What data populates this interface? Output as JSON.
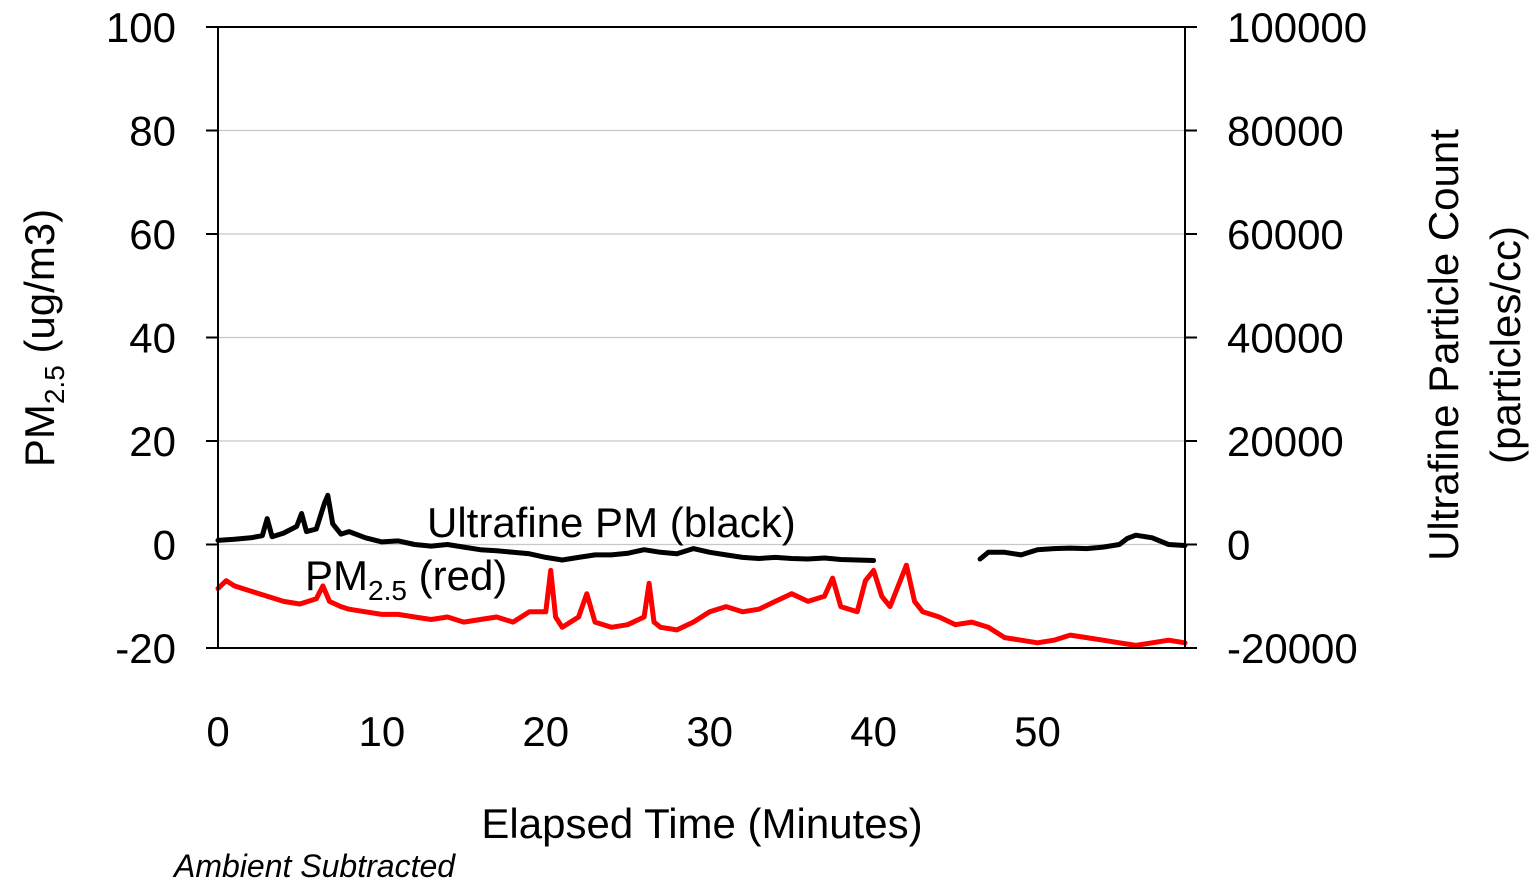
{
  "chart_data": {
    "type": "line",
    "xlabel": "Elapsed Time (Minutes)",
    "ylabel_left": {
      "main": "PM",
      "sub": "2.5",
      "rest": " (ug/m3)"
    },
    "ylabel_right_lines": [
      "Ultrafine Particle Count",
      "(particles/cc)"
    ],
    "note": "Ambient Subtracted",
    "xlim": [
      0,
      59
    ],
    "ylim_left": [
      -20,
      100
    ],
    "ylim_right": [
      -20000,
      100000
    ],
    "x_ticks": [
      "0",
      "10",
      "20",
      "30",
      "40",
      "50"
    ],
    "y_left_ticks": [
      "100",
      "80",
      "60",
      "40",
      "20",
      "0",
      "-20"
    ],
    "y_right_ticks": [
      "100000",
      "80000",
      "60000",
      "40000",
      "20000",
      "0",
      "-20000"
    ],
    "grid": "horizontal",
    "annotations": {
      "ultrafine": "Ultrafine PM (black)",
      "pm": {
        "main": "PM",
        "sub": "2.5",
        "rest": " (red)"
      }
    },
    "series": [
      {
        "axis": "right",
        "color": "#000000",
        "points": [
          [
            0,
            800
          ],
          [
            1,
            1000
          ],
          [
            2,
            1300
          ],
          [
            2.7,
            1700
          ],
          [
            3.0,
            5000
          ],
          [
            3.3,
            1500
          ],
          [
            4.0,
            2200
          ],
          [
            4.8,
            3500
          ],
          [
            5.1,
            6000
          ],
          [
            5.4,
            2500
          ],
          [
            6.0,
            3000
          ],
          [
            6.5,
            8000
          ],
          [
            6.7,
            9500
          ],
          [
            7.0,
            4000
          ],
          [
            7.5,
            2000
          ],
          [
            8.0,
            2500
          ],
          [
            9.0,
            1300
          ],
          [
            10.0,
            500
          ],
          [
            11.0,
            700
          ],
          [
            12.0,
            0
          ],
          [
            13.0,
            -300
          ],
          [
            14.0,
            0
          ],
          [
            15.0,
            -500
          ],
          [
            16.0,
            -1000
          ],
          [
            17.0,
            -1200
          ],
          [
            18.0,
            -1500
          ],
          [
            19.0,
            -1800
          ],
          [
            20.0,
            -2500
          ],
          [
            21.0,
            -3000
          ],
          [
            22.0,
            -2500
          ],
          [
            23.0,
            -2000
          ],
          [
            24.0,
            -2000
          ],
          [
            25.0,
            -1700
          ],
          [
            26.0,
            -1000
          ],
          [
            27.0,
            -1500
          ],
          [
            28.0,
            -1800
          ],
          [
            29.0,
            -800
          ],
          [
            30.0,
            -1500
          ],
          [
            31.0,
            -2000
          ],
          [
            32.0,
            -2500
          ],
          [
            33.0,
            -2700
          ],
          [
            34.0,
            -2500
          ],
          [
            35.0,
            -2700
          ],
          [
            36.0,
            -2800
          ],
          [
            37.0,
            -2600
          ],
          [
            38.0,
            -2900
          ],
          [
            39.0,
            -3000
          ],
          [
            40.0,
            -3100
          ],
          null,
          [
            46.5,
            -2800
          ],
          [
            47.0,
            -1500
          ],
          [
            48.0,
            -1500
          ],
          [
            49.0,
            -2000
          ],
          [
            50.0,
            -1000
          ],
          [
            51.0,
            -800
          ],
          [
            52.0,
            -700
          ],
          [
            53.0,
            -800
          ],
          [
            54.0,
            -500
          ],
          [
            55.0,
            0
          ],
          [
            55.5,
            1200
          ],
          [
            56.0,
            1800
          ],
          [
            57.0,
            1300
          ],
          [
            58.0,
            0
          ],
          [
            59.0,
            -200
          ]
        ]
      },
      {
        "axis": "left",
        "color": "#ff0000",
        "points": [
          [
            0,
            -8.5
          ],
          [
            0.5,
            -7
          ],
          [
            1,
            -8
          ],
          [
            2,
            -9
          ],
          [
            3,
            -10
          ],
          [
            4,
            -11
          ],
          [
            5,
            -11.5
          ],
          [
            6,
            -10.5
          ],
          [
            6.4,
            -8
          ],
          [
            6.8,
            -11
          ],
          [
            7.5,
            -12
          ],
          [
            8,
            -12.5
          ],
          [
            9,
            -13
          ],
          [
            10,
            -13.5
          ],
          [
            11,
            -13.5
          ],
          [
            12,
            -14
          ],
          [
            13,
            -14.5
          ],
          [
            14,
            -14
          ],
          [
            15,
            -15
          ],
          [
            16,
            -14.5
          ],
          [
            17,
            -14
          ],
          [
            18,
            -15
          ],
          [
            19,
            -13
          ],
          [
            20,
            -13
          ],
          [
            20.3,
            -5
          ],
          [
            20.6,
            -14
          ],
          [
            21,
            -16
          ],
          [
            21.5,
            -15
          ],
          [
            22,
            -14
          ],
          [
            22.5,
            -9.5
          ],
          [
            23,
            -15
          ],
          [
            24,
            -16
          ],
          [
            25,
            -15.5
          ],
          [
            26,
            -14
          ],
          [
            26.3,
            -7.5
          ],
          [
            26.6,
            -15
          ],
          [
            27,
            -16
          ],
          [
            28,
            -16.5
          ],
          [
            29,
            -15
          ],
          [
            30,
            -13
          ],
          [
            31,
            -12
          ],
          [
            32,
            -13
          ],
          [
            33,
            -12.5
          ],
          [
            34,
            -11
          ],
          [
            35,
            -9.5
          ],
          [
            36,
            -11
          ],
          [
            37,
            -10
          ],
          [
            37.5,
            -6.5
          ],
          [
            38,
            -12
          ],
          [
            39,
            -13
          ],
          [
            39.5,
            -7
          ],
          [
            40,
            -5
          ],
          [
            40.5,
            -10
          ],
          [
            41,
            -12
          ],
          [
            41.5,
            -8
          ],
          [
            42,
            -4
          ],
          [
            42.5,
            -11
          ],
          [
            43,
            -13
          ],
          [
            44,
            -14
          ],
          [
            45,
            -15.5
          ],
          [
            46,
            -15
          ],
          [
            47,
            -16
          ],
          [
            48,
            -18
          ],
          [
            49,
            -18.5
          ],
          [
            50,
            -19
          ],
          [
            51,
            -18.5
          ],
          [
            52,
            -17.5
          ],
          [
            53,
            -18
          ],
          [
            54,
            -18.5
          ],
          [
            55,
            -19
          ],
          [
            56,
            -19.5
          ],
          [
            57,
            -19
          ],
          [
            58,
            -18.5
          ],
          [
            59,
            -19
          ]
        ]
      }
    ]
  }
}
